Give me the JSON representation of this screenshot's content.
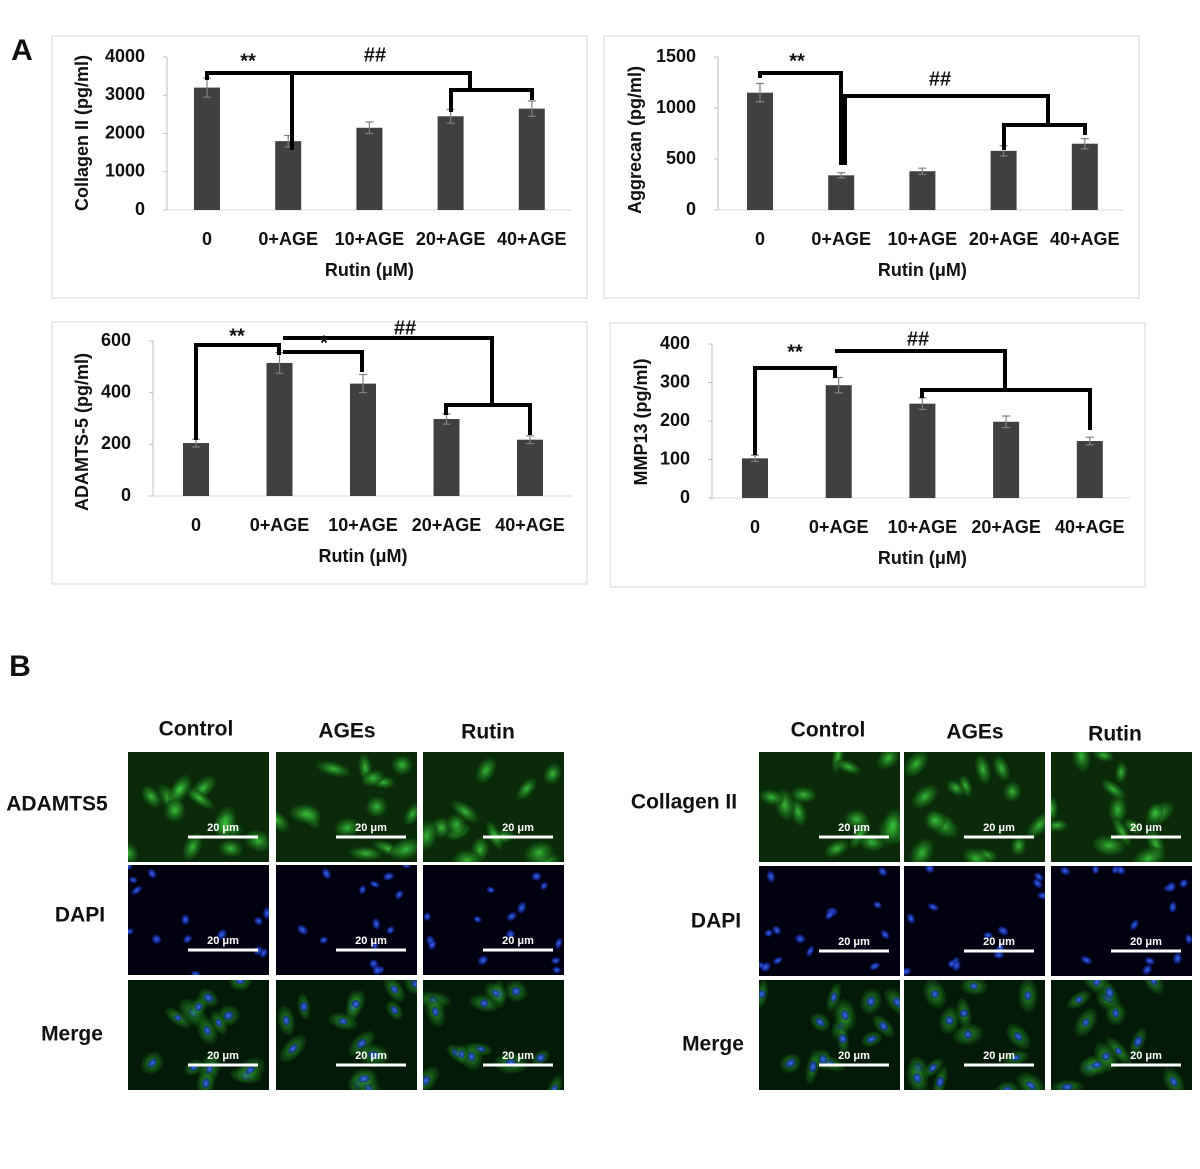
{
  "panel_labels": [
    "A",
    "B"
  ],
  "chart_data": [
    {
      "type": "bar",
      "y_label": "Collagen II (pg/ml)",
      "x_label": "Rutin (μM)",
      "categories": [
        "0",
        "0+AGE",
        "10+AGE",
        "20+AGE",
        "40+AGE"
      ],
      "values": [
        3200,
        1800,
        2150,
        2450,
        2650
      ],
      "errors": [
        250,
        150,
        150,
        180,
        200
      ],
      "color": "#404040",
      "ylim": [
        0,
        4000
      ],
      "yticks": [
        0,
        1000,
        2000,
        3000,
        4000
      ],
      "annotations": [
        "**",
        "##"
      ]
    },
    {
      "type": "bar",
      "y_label": "Aggrecan (pg/ml)",
      "x_label": "Rutin (μM)",
      "categories": [
        "0",
        "0+AGE",
        "10+AGE",
        "20+AGE",
        "40+AGE"
      ],
      "values": [
        1150,
        340,
        380,
        580,
        650
      ],
      "errors": [
        90,
        25,
        30,
        50,
        50
      ],
      "color": "#404040",
      "ylim": [
        0,
        1500
      ],
      "yticks": [
        0,
        500,
        1000,
        1500
      ],
      "annotations": [
        "**",
        "##"
      ]
    },
    {
      "type": "bar",
      "y_label": "ADAMTS-5 (pg/ml)",
      "x_label": "Rutin (μM)",
      "categories": [
        "0",
        "0+AGE",
        "10+AGE",
        "20+AGE",
        "40+AGE"
      ],
      "values": [
        205,
        515,
        435,
        298,
        218
      ],
      "errors": [
        15,
        40,
        35,
        20,
        15
      ],
      "color": "#404040",
      "ylim": [
        0,
        600
      ],
      "yticks": [
        0,
        200,
        400,
        600
      ],
      "annotations": [
        "**",
        "*",
        "##"
      ]
    },
    {
      "type": "bar",
      "y_label": "MMP13 (pg/ml)",
      "x_label": "Rutin (μM)",
      "categories": [
        "0",
        "0+AGE",
        "10+AGE",
        "20+AGE",
        "40+AGE"
      ],
      "values": [
        103,
        293,
        245,
        198,
        148
      ],
      "errors": [
        8,
        20,
        15,
        15,
        10
      ],
      "color": "#404040",
      "ylim": [
        0,
        400
      ],
      "yticks": [
        0,
        100,
        200,
        300,
        400
      ],
      "annotations": [
        "**",
        "##"
      ]
    }
  ],
  "panel_b": {
    "groups": [
      {
        "columns": [
          "Control",
          "AGEs",
          "Rutin"
        ],
        "rows": [
          "ADAMTS5",
          "DAPI",
          "Merge"
        ]
      },
      {
        "columns": [
          "Control",
          "AGEs",
          "Rutin"
        ],
        "rows": [
          "Collagen II",
          "DAPI",
          "Merge"
        ]
      }
    ],
    "scale_bar": "20 μm"
  }
}
